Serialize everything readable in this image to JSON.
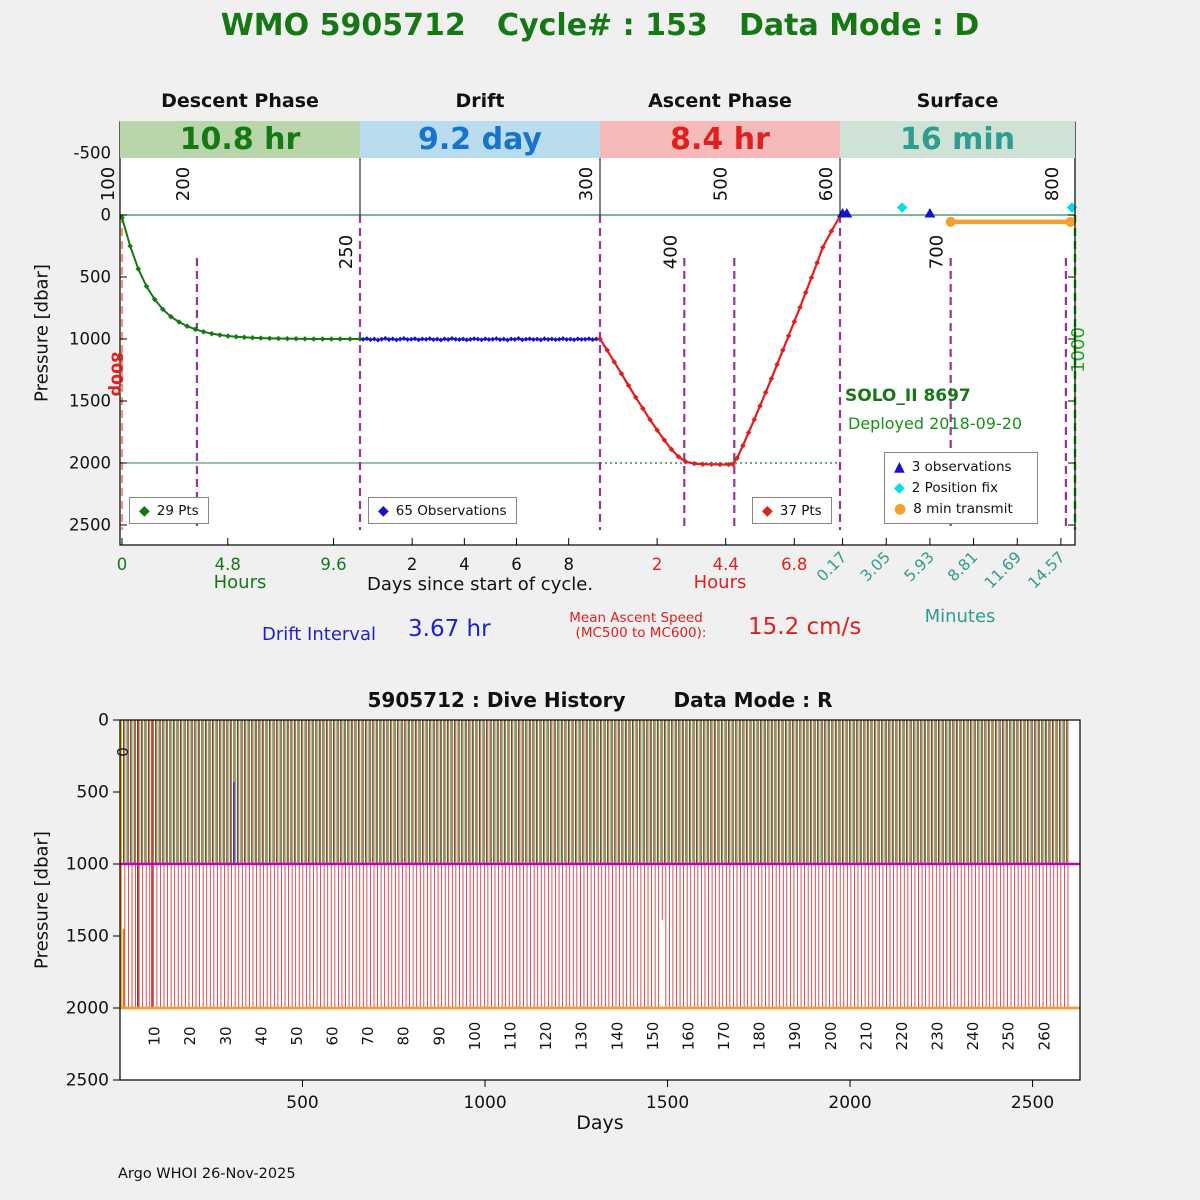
{
  "title": "WMO 5905712   Cycle# : 153   Data Mode : D",
  "footer": "Argo WHOI 26-Nov-2025",
  "colors": {
    "title": "#157815",
    "descent": "#157815",
    "descent_bg": "#b9d6aa",
    "drift": "#1873cc",
    "drift_bg": "#b9dcee",
    "drift_series": "#1414cc",
    "ascent": "#e01f1f",
    "ascent_bg": "#f6baba",
    "surface": "#2e9c8e",
    "surface_bg": "#cfe2d6",
    "purple": "#993399",
    "salmon": "#f2907f",
    "ref_green": "#2e8b57",
    "bright_green": "#22cc22",
    "green_label": "#1faa1f",
    "orange": "#f5a028",
    "cyan": "#00dcea",
    "marker_blue": "#1414cc",
    "annotation_blue": "#2121cc",
    "deployed_green": "#169016"
  },
  "top_chart": {
    "phases": [
      {
        "name": "Descent Phase",
        "duration": "10.8 hr"
      },
      {
        "name": "Drift",
        "duration": "9.2 day"
      },
      {
        "name": "Ascent Phase",
        "duration": "8.4 hr"
      },
      {
        "name": "Surface",
        "duration": "16 min"
      }
    ],
    "ylabel": "Pressure [dbar]",
    "axis_labels": {
      "descent": "Hours",
      "drift": "Days since start of cycle.",
      "ascent": "Hours",
      "surface": "Minutes"
    },
    "legend_descent": "29 Pts",
    "legend_drift": "65 Observations",
    "legend_ascent": "37 Pts",
    "surface_legend": [
      "3 observations",
      "2 Position fix",
      "8 min transmit"
    ],
    "float_label": "SOLO_II 8697",
    "deployed_label": "Deployed 2018-09-20",
    "left_label": "800p",
    "annotations": {
      "drift_label": "Drift Interval",
      "drift_value": "3.67 hr",
      "ascent_speed_label": "Mean Ascent Speed",
      "ascent_speed_sub": "(MC500 to MC600):",
      "ascent_speed_value": "15.2 cm/s"
    }
  },
  "bottom_chart": {
    "title": "5905712 : Dive History",
    "data_mode": "Data Mode : R",
    "xlabel": "Days",
    "ylabel": "Pressure [dbar]"
  },
  "chart_data": [
    {
      "type": "line",
      "title": "Cycle 153 phase profile",
      "ylabel": "Pressure [dbar]",
      "y_inverted": true,
      "ylim": [
        -750,
        2650
      ],
      "yticks": [
        -500,
        0,
        500,
        1000,
        1500,
        2000,
        2500
      ],
      "phases": {
        "descent": {
          "axis_label": "Hours",
          "span": 10.8,
          "ticks": [
            "0",
            "4.8",
            "9.6"
          ]
        },
        "drift": {
          "axis_label": "Days since start of cycle.",
          "span": 9.2,
          "ticks": [
            "2",
            "4",
            "6",
            "8"
          ]
        },
        "ascent": {
          "axis_label": "Hours",
          "span": 8.4,
          "ticks": [
            "2",
            "4.4",
            "6.8"
          ]
        },
        "surface": {
          "axis_label": "Minutes",
          "span": 15.5,
          "ticks": [
            "0.17",
            "3.05",
            "5.93",
            "8.81",
            "11.69",
            "14.57"
          ]
        }
      },
      "ref_lines": {
        "surface_pressure": 0,
        "park_pressure": 2000
      },
      "mc_markers": [
        {
          "label": "100",
          "phase": "descent",
          "t": 0,
          "style": "salmon",
          "span": "full",
          "label_pos": "top"
        },
        {
          "label": "200",
          "phase": "descent",
          "t": 3.4,
          "style": "purple",
          "span": "partial",
          "label_pos": "top"
        },
        {
          "label": "250",
          "phase": "drift",
          "t": 0,
          "style": "purple",
          "span": "full",
          "label_pos": "inside"
        },
        {
          "label": "300",
          "phase": "ascent",
          "t": 0,
          "style": "purple",
          "span": "full",
          "label_pos": "top"
        },
        {
          "label": "400",
          "phase": "ascent",
          "t": 2.95,
          "style": "purple",
          "span": "partial",
          "label_pos": "inside"
        },
        {
          "label": "500",
          "phase": "ascent",
          "t": 4.7,
          "style": "purple",
          "span": "partial",
          "label_pos": "top"
        },
        {
          "label": "600",
          "phase": "surface",
          "t": 0,
          "style": "purple",
          "span": "full",
          "label_pos": "top"
        },
        {
          "label": "700",
          "phase": "surface",
          "t": 7.3,
          "style": "purple",
          "span": "partial",
          "label_pos": "inside"
        },
        {
          "label": "800",
          "phase": "surface",
          "t": 14.9,
          "style": "purple",
          "span": "partial",
          "label_pos": "top"
        },
        {
          "label": "1000",
          "phase": "surface",
          "t": 15.5,
          "style": "green",
          "span": "full",
          "label_pos": "inside-green"
        }
      ],
      "series": [
        {
          "name": "descent",
          "phase": "descent",
          "color": "#157815",
          "n_points": 29,
          "t": [
            0,
            0.37,
            0.74,
            1.11,
            1.48,
            1.85,
            2.22,
            2.59,
            2.96,
            3.33,
            3.7,
            4.07,
            4.44,
            4.81,
            5.18,
            5.55,
            5.92,
            6.3,
            6.7,
            7.1,
            7.5,
            7.9,
            8.3,
            8.7,
            9.1,
            9.5,
            9.9,
            10.35,
            10.8
          ],
          "p": [
            20,
            250,
            435,
            575,
            680,
            760,
            820,
            863,
            897,
            922,
            942,
            957,
            968,
            976,
            982,
            986,
            990,
            993,
            995,
            996,
            997,
            998,
            999,
            1000,
            1000,
            1000,
            1000,
            1000,
            1000
          ]
        },
        {
          "name": "drift",
          "phase": "drift",
          "color": "#1414cc",
          "n_points": 65,
          "t_start": 0.12,
          "t_end": 9.2,
          "p": [
            1003,
            997,
            1005,
            1000,
            1008,
            1002,
            995,
            1004,
            999,
            1007,
            1001,
            996,
            1004,
            1002,
            998,
            1006,
            1000,
            1003,
            997,
            1005,
            1001,
            1008,
            999,
            1004,
            996,
            1002,
            1005,
            1000,
            1007,
            1003,
            998,
            1001,
            1006,
            999,
            1004,
            1002,
            997,
            1005,
            1001,
            1008,
            1000,
            1003,
            996,
            1006,
            1002,
            999,
            1004,
            1001,
            1007,
            998,
            1003,
            1000,
            1005,
            1002,
            997,
            1004,
            1001,
            1006,
            999,
            1003,
            1002,
            998,
            1005,
            1000,
            1004
          ]
        },
        {
          "name": "ascent",
          "phase": "ascent",
          "color": "#e01f1f",
          "n_points": 37,
          "t": [
            0,
            0.25,
            0.5,
            0.75,
            1,
            1.25,
            1.5,
            1.75,
            2,
            2.25,
            2.5,
            2.75,
            3,
            3.3,
            3.6,
            3.9,
            4.2,
            4.5,
            4.65,
            4.8,
            5,
            5.2,
            5.4,
            5.6,
            5.8,
            6,
            6.2,
            6.4,
            6.6,
            6.8,
            7,
            7.2,
            7.4,
            7.6,
            7.8,
            8.1,
            8.4
          ],
          "p": [
            1000,
            1090,
            1185,
            1280,
            1375,
            1470,
            1560,
            1650,
            1735,
            1815,
            1890,
            1950,
            1990,
            2005,
            2010,
            2010,
            2012,
            2012,
            2010,
            1960,
            1860,
            1755,
            1650,
            1540,
            1430,
            1320,
            1205,
            1090,
            975,
            860,
            745,
            625,
            505,
            385,
            260,
            130,
            10
          ]
        },
        {
          "name": "surface-observations",
          "phase": "surface",
          "marker": "triangle",
          "color": "#1414cc",
          "t": [
            0.17,
            0.45,
            5.93
          ],
          "p": [
            -12,
            -12,
            -12
          ]
        },
        {
          "name": "position-fix",
          "phase": "surface",
          "marker": "diamond",
          "color": "#00dcea",
          "t": [
            4.1,
            15.3
          ],
          "p": [
            -60,
            -60
          ]
        },
        {
          "name": "transmit",
          "phase": "surface",
          "marker": "segment",
          "color": "#f5a028",
          "t": [
            7.3,
            15.2
          ],
          "p": [
            55,
            55
          ]
        }
      ]
    },
    {
      "type": "dive-history",
      "xlabel": "Days",
      "ylabel": "Pressure [dbar]",
      "xlim": [
        0,
        2630
      ],
      "ylim": [
        0,
        2500
      ],
      "xticks": [
        500,
        1000,
        1500,
        2000,
        2500
      ],
      "yticks": [
        0,
        500,
        1000,
        1500,
        2000,
        2500
      ],
      "n_cycles": 266,
      "days_per_cycle": 9.75,
      "drift_pressure": 1000,
      "profile_pressure": 2000,
      "cycle_tick_step": 10,
      "cycle_tick_max": 260,
      "first_cycle_label": "0",
      "colors": {
        "descent": "#1a7a1a",
        "ascent": "#dd2222",
        "drift_line": "#c000c0",
        "bottom_line": "#f0a030"
      },
      "anomalies": [
        {
          "cycle": 0.3,
          "color": "#e8a020",
          "p0": 0,
          "p1": 2000
        },
        {
          "cycle": 1,
          "color": "#e07820",
          "p0": 1450,
          "p1": 2000
        },
        {
          "cycle": 5,
          "color": "#8b3a2a",
          "p0": 0,
          "p1": 2000
        },
        {
          "cycle": 9,
          "color": "#8b3a2a",
          "p0": 0,
          "p1": 2000
        },
        {
          "cycle": 32,
          "color": "#2233cc",
          "p0": 430,
          "p1": 1000
        },
        {
          "cycle": 152,
          "type": "gap",
          "p0": 1390,
          "p1": 1990
        }
      ]
    }
  ]
}
